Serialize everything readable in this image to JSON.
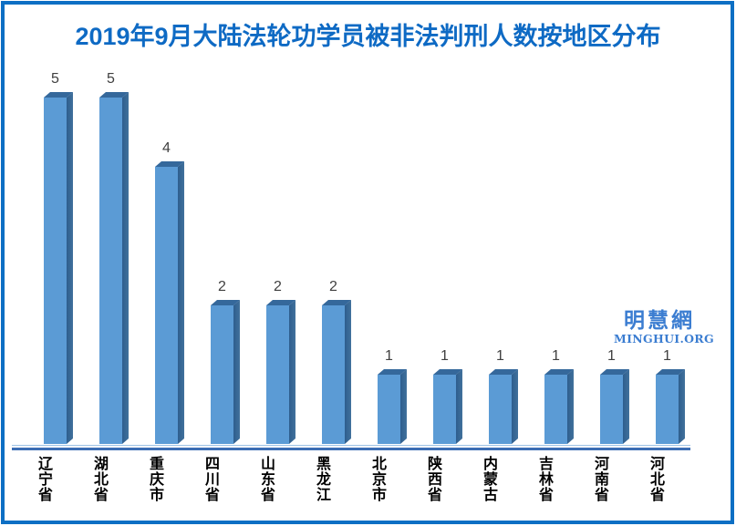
{
  "title": "2019年9月大陆法轮功学员被非法判刑人数按地区分布",
  "watermark": {
    "cn": "明慧網",
    "en": "MINGHUI.ORG"
  },
  "chart_data": {
    "type": "bar",
    "style": "3d-column",
    "title": "2019年9月大陆法轮功学员被非法判刑人数按地区分布",
    "categories": [
      "辽宁省",
      "湖北省",
      "重庆市",
      "四川省",
      "山东省",
      "黑龙江",
      "北京市",
      "陕西省",
      "内蒙古",
      "吉林省",
      "河南省",
      "河北省"
    ],
    "values": [
      5,
      5,
      4,
      2,
      2,
      2,
      1,
      1,
      1,
      1,
      1,
      1
    ],
    "xlabel": "",
    "ylabel": "",
    "ylim": [
      0,
      5
    ],
    "grid": false,
    "legend": false,
    "data_labels": true,
    "category_label_orientation": "vertical"
  },
  "colors": {
    "bar_front": "#5B9BD5",
    "bar_side": "#41719C",
    "bar_side_dark": "#2E5E8E",
    "bar_top": "#35689B",
    "title": "#0E6AC4",
    "border": "#0D6FC4",
    "axis": "#3C6EB4",
    "axis_light": "#9CC2E5",
    "value_label": "#3F3F3F",
    "category_label": "#000000",
    "watermark": "#3B7DD1"
  }
}
